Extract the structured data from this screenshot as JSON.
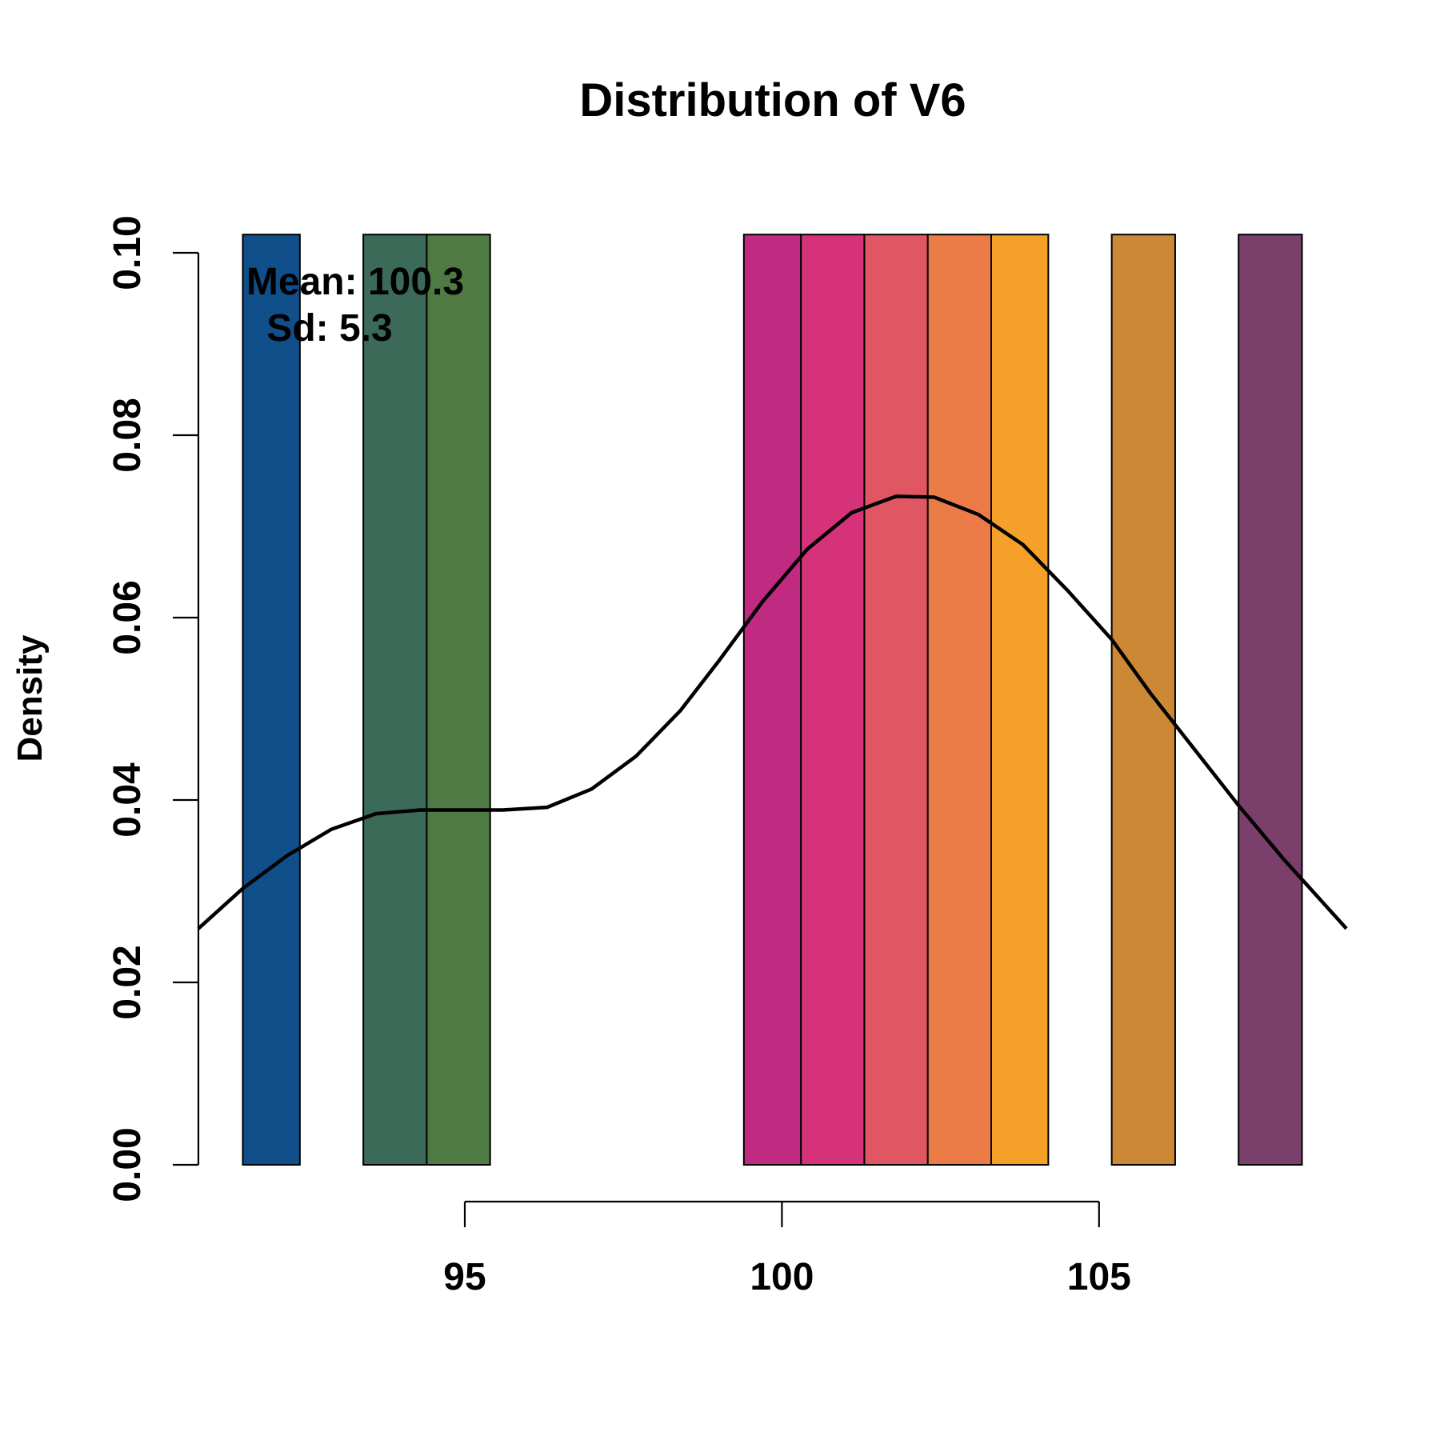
{
  "chart_data": {
    "type": "bar",
    "title": "Distribution of V6",
    "xlabel": "",
    "ylabel": "Density",
    "xlim": [
      90.8,
      108.9
    ],
    "ylim": [
      0,
      0.1
    ],
    "x_ticks": [
      95,
      100,
      105
    ],
    "y_ticks": [
      0,
      0.02,
      0.04,
      0.06,
      0.08,
      0.1
    ],
    "y_tick_labels": [
      "0.00",
      "0.02",
      "0.04",
      "0.06",
      "0.08",
      "0.10"
    ],
    "bins": [
      {
        "start": 91.5,
        "end": 92.4,
        "density": 0.102,
        "color": "#114f8a"
      },
      {
        "start": 93.4,
        "end": 94.4,
        "density": 0.102,
        "color": "#3c6a58"
      },
      {
        "start": 94.4,
        "end": 95.4,
        "density": 0.102,
        "color": "#4f7a43"
      },
      {
        "start": 99.4,
        "end": 100.3,
        "density": 0.102,
        "color": "#c02a80"
      },
      {
        "start": 100.3,
        "end": 101.3,
        "density": 0.102,
        "color": "#d5327a"
      },
      {
        "start": 101.3,
        "end": 102.3,
        "density": 0.102,
        "color": "#e05763"
      },
      {
        "start": 102.3,
        "end": 103.3,
        "density": 0.102,
        "color": "#ec7c47"
      },
      {
        "start": 103.3,
        "end": 104.2,
        "density": 0.102,
        "color": "#f5a028"
      },
      {
        "start": 105.2,
        "end": 106.2,
        "density": 0.102,
        "color": "#cc8834"
      },
      {
        "start": 107.2,
        "end": 108.2,
        "density": 0.102,
        "color": "#7b3f6b"
      }
    ],
    "density_curve": {
      "x": [
        90.8,
        91.5,
        92.2,
        92.9,
        93.6,
        94.3,
        95.0,
        95.6,
        96.3,
        97.0,
        97.7,
        98.4,
        99.0,
        99.7,
        100.4,
        101.1,
        101.8,
        102.4,
        103.1,
        103.8,
        104.5,
        105.2,
        105.8,
        106.5,
        107.2,
        107.9,
        108.9
      ],
      "y": [
        0.0259,
        0.0303,
        0.0339,
        0.0368,
        0.0385,
        0.0389,
        0.0389,
        0.0389,
        0.0392,
        0.0412,
        0.0448,
        0.0498,
        0.0552,
        0.0618,
        0.0675,
        0.0715,
        0.0733,
        0.0732,
        0.0713,
        0.068,
        0.063,
        0.0576,
        0.0518,
        0.0456,
        0.0394,
        0.0336,
        0.0259
      ]
    },
    "annotations": {
      "mean": "Mean: 100.3",
      "sd": "Sd: 5.3"
    }
  }
}
